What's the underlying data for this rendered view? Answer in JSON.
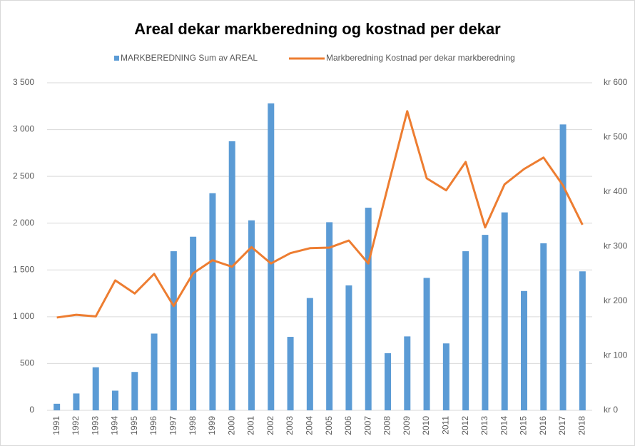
{
  "chart_data": {
    "type": "bar_line",
    "title": "Areal dekar markberedning og kostnad per dekar",
    "categories": [
      "1991",
      "1992",
      "1993",
      "1994",
      "1995",
      "1996",
      "1997",
      "1998",
      "1999",
      "2000",
      "2001",
      "2002",
      "2003",
      "2004",
      "2005",
      "2006",
      "2007",
      "2008",
      "2009",
      "2010",
      "2011",
      "2012",
      "2013",
      "2014",
      "2015",
      "2016",
      "2017",
      "2018"
    ],
    "series": [
      {
        "name": "MARKBEREDNING Sum av AREAL",
        "color": "#5b9bd5",
        "type": "bar",
        "values": [
          70,
          180,
          460,
          210,
          410,
          820,
          1700,
          1855,
          2320,
          2875,
          2030,
          3280,
          785,
          1200,
          2010,
          1335,
          2165,
          610,
          790,
          1415,
          715,
          1700,
          1875,
          2115,
          1275,
          1785,
          3055,
          1485
        ]
      },
      {
        "name": "Markberedning Kostnad per dekar markberedning",
        "color": "#ed7d31",
        "type": "line",
        "axis": "y2",
        "values": [
          170,
          175,
          172,
          238,
          214,
          250,
          191,
          251,
          275,
          263,
          299,
          269,
          288,
          297,
          298,
          311,
          269,
          409,
          548,
          425,
          403,
          455,
          335,
          414,
          442,
          463,
          412,
          340
        ]
      }
    ],
    "ylim": [
      0,
      3500
    ],
    "yticks": [
      0,
      500,
      {
        "value": 1000,
        "label": "1 000"
      },
      {
        "value": 1500,
        "label": "1 500"
      },
      {
        "value": 2000,
        "label": "2 000"
      },
      {
        "value": 2500,
        "label": "2 500"
      },
      {
        "value": 3000,
        "label": "3 000"
      },
      {
        "value": 3500,
        "label": "3 500"
      }
    ],
    "y2lim": [
      0,
      600
    ],
    "y2ticks": [
      {
        "value": 0,
        "label": "kr 0"
      },
      {
        "value": 100,
        "label": "kr 100"
      },
      {
        "value": 200,
        "label": "kr 200"
      },
      {
        "value": 300,
        "label": "kr 300"
      },
      {
        "value": 400,
        "label": "kr 400"
      },
      {
        "value": 500,
        "label": "kr 500"
      },
      {
        "value": 600,
        "label": "kr 600"
      }
    ],
    "grid": true,
    "legend": "top"
  }
}
